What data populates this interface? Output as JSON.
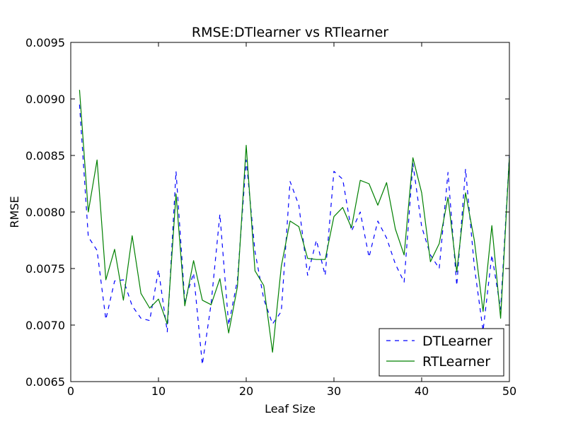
{
  "chart_data": {
    "type": "line",
    "title": "RMSE:DTlearner vs RTlearner",
    "xlabel": "Leaf Size",
    "ylabel": "RMSE",
    "xlim": [
      0,
      50
    ],
    "ylim": [
      0.0065,
      0.0095
    ],
    "x_ticks": [
      0,
      10,
      20,
      30,
      40,
      50
    ],
    "x_tick_labels": [
      "0",
      "10",
      "20",
      "30",
      "40",
      "50"
    ],
    "y_ticks": [
      0.0065,
      0.007,
      0.0075,
      0.008,
      0.0085,
      0.009,
      0.0095
    ],
    "y_tick_labels": [
      "0.0065",
      "0.0070",
      "0.0075",
      "0.0080",
      "0.0085",
      "0.0090",
      "0.0095"
    ],
    "grid": false,
    "legend_position": "lower-right",
    "x": [
      1,
      2,
      3,
      4,
      5,
      6,
      7,
      8,
      9,
      10,
      11,
      12,
      13,
      14,
      15,
      16,
      17,
      18,
      19,
      20,
      21,
      22,
      23,
      24,
      25,
      26,
      27,
      28,
      29,
      30,
      31,
      32,
      33,
      34,
      35,
      36,
      37,
      38,
      39,
      40,
      41,
      42,
      43,
      44,
      45,
      46,
      47,
      48,
      49,
      50
    ],
    "series": [
      {
        "name": "DTLearner",
        "color": "#0000ff",
        "style": "dashed",
        "values": [
          0.00895,
          0.00778,
          0.00766,
          0.00705,
          0.00739,
          0.0074,
          0.00717,
          0.00706,
          0.00704,
          0.00749,
          0.00694,
          0.00836,
          0.00721,
          0.00746,
          0.00665,
          0.00719,
          0.00798,
          0.007,
          0.0074,
          0.00846,
          0.00765,
          0.00723,
          0.00701,
          0.00712,
          0.00827,
          0.00806,
          0.00744,
          0.00775,
          0.00744,
          0.00836,
          0.00829,
          0.00783,
          0.008,
          0.0076,
          0.00792,
          0.00777,
          0.00754,
          0.00738,
          0.00843,
          0.00787,
          0.00762,
          0.0075,
          0.00835,
          0.00735,
          0.00838,
          0.00752,
          0.00695,
          0.00762,
          0.00714,
          0.0085
        ]
      },
      {
        "name": "RTLearner",
        "color": "#008000",
        "style": "solid",
        "values": [
          0.00908,
          0.008,
          0.00846,
          0.0074,
          0.00767,
          0.00722,
          0.00779,
          0.00728,
          0.00715,
          0.00723,
          0.00701,
          0.00816,
          0.00717,
          0.00757,
          0.00722,
          0.00718,
          0.00741,
          0.00693,
          0.00734,
          0.00859,
          0.00748,
          0.00735,
          0.00676,
          0.00752,
          0.00792,
          0.00787,
          0.00759,
          0.00758,
          0.00758,
          0.00796,
          0.00804,
          0.00786,
          0.00828,
          0.00825,
          0.00806,
          0.00826,
          0.00785,
          0.00762,
          0.00848,
          0.00817,
          0.00756,
          0.00772,
          0.00813,
          0.00747,
          0.00817,
          0.00775,
          0.00712,
          0.00788,
          0.00706,
          0.00849
        ]
      }
    ]
  }
}
